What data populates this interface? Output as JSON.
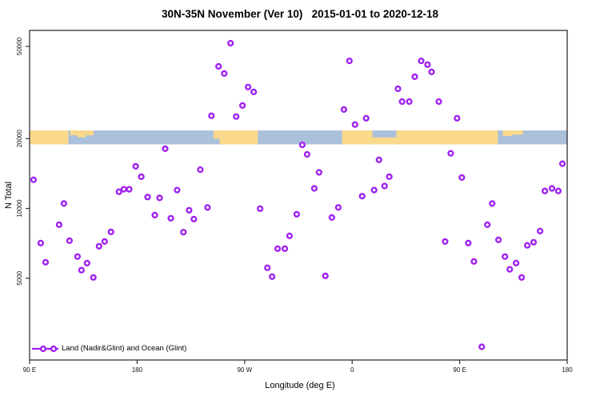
{
  "chart_data": {
    "type": "scatter",
    "title": "30N-35N November (Ver 10)   2015-01-01 to 2020-12-18",
    "xlabel": "Longitude (deg E)",
    "ylabel": "N Total",
    "y_scale": "log",
    "grid": "off",
    "legend_position": "bottom-left",
    "legend_label": "Land (Nadir&Glint) and Ocean (Glint)",
    "point_color": "#A020F0",
    "axis_color": "#333333",
    "xlim": [
      90,
      540
    ],
    "ylim": [
      2220,
      58600
    ],
    "x_ticks": [
      {
        "value": 90,
        "label": "90 E"
      },
      {
        "value": 180,
        "label": "180"
      },
      {
        "value": 270,
        "label": "90 W"
      },
      {
        "value": 360,
        "label": "0"
      },
      {
        "value": 450,
        "label": "90 E"
      },
      {
        "value": 540,
        "label": "180"
      }
    ],
    "y_ticks": [
      {
        "value": 5000,
        "label": "5000"
      },
      {
        "value": 10000,
        "label": "10000"
      },
      {
        "value": 20000,
        "label": "20000"
      },
      {
        "value": 50000,
        "label": "50000"
      }
    ],
    "points_format": [
      "longitude_axis_deg_east",
      "n_total"
    ],
    "points": [
      [
        203.5,
        18100
      ],
      [
        178.8,
        15200
      ],
      [
        183.5,
        13700
      ],
      [
        232.9,
        14700
      ],
      [
        93.3,
        13300
      ],
      [
        164.8,
        11800
      ],
      [
        168.8,
        12100
      ],
      [
        173.4,
        12100
      ],
      [
        188.8,
        11200
      ],
      [
        198.8,
        11100
      ],
      [
        213.5,
        12000
      ],
      [
        258.2,
        51600
      ],
      [
        248.2,
        41000
      ],
      [
        252.9,
        38200
      ],
      [
        272.9,
        33400
      ],
      [
        277.6,
        31800
      ],
      [
        268.2,
        27800
      ],
      [
        242.2,
        25100
      ],
      [
        262.9,
        24900
      ],
      [
        357.7,
        43300
      ],
      [
        353.1,
        26700
      ],
      [
        371.7,
        24500
      ],
      [
        362.4,
        23000
      ],
      [
        318.3,
        18800
      ],
      [
        322.3,
        17100
      ],
      [
        332.3,
        14300
      ],
      [
        382.4,
        16200
      ],
      [
        391.1,
        13700
      ],
      [
        328.3,
        12200
      ],
      [
        378.4,
        12000
      ],
      [
        387.1,
        12500
      ],
      [
        368.4,
        11300
      ],
      [
        417.8,
        43300
      ],
      [
        423.1,
        41700
      ],
      [
        426.5,
        38800
      ],
      [
        412.4,
        37000
      ],
      [
        398.4,
        32800
      ],
      [
        401.8,
        28900
      ],
      [
        407.8,
        28900
      ],
      [
        432.5,
        28900
      ],
      [
        447.8,
        24500
      ],
      [
        442.5,
        17300
      ],
      [
        451.8,
        13600
      ],
      [
        536.0,
        15600
      ],
      [
        521.3,
        11900
      ],
      [
        527.3,
        12200
      ],
      [
        532.6,
        11900
      ],
      [
        118.7,
        10500
      ],
      [
        194.8,
        9360
      ],
      [
        208.2,
        9070
      ],
      [
        223.5,
        9820
      ],
      [
        227.5,
        9000
      ],
      [
        238.9,
        10100
      ],
      [
        114.7,
        8510
      ],
      [
        218.8,
        7900
      ],
      [
        99.3,
        7090
      ],
      [
        123.4,
        7260
      ],
      [
        158.1,
        7920
      ],
      [
        148.1,
        6870
      ],
      [
        152.8,
        7200
      ],
      [
        103.4,
        5860
      ],
      [
        130.1,
        6200
      ],
      [
        138.1,
        5810
      ],
      [
        133.4,
        5420
      ],
      [
        143.4,
        5040
      ],
      [
        283.0,
        9980
      ],
      [
        313.6,
        9440
      ],
      [
        343.0,
        9140
      ],
      [
        348.4,
        10100
      ],
      [
        307.6,
        7620
      ],
      [
        297.6,
        6710
      ],
      [
        303.6,
        6710
      ],
      [
        289.0,
        5550
      ],
      [
        293.0,
        5080
      ],
      [
        337.6,
        5120
      ],
      [
        477.2,
        10500
      ],
      [
        473.2,
        8510
      ],
      [
        517.3,
        7990
      ],
      [
        437.8,
        7200
      ],
      [
        457.2,
        7090
      ],
      [
        482.5,
        7320
      ],
      [
        506.6,
        6930
      ],
      [
        511.9,
        7150
      ],
      [
        461.9,
        5910
      ],
      [
        487.9,
        6200
      ],
      [
        497.2,
        5810
      ],
      [
        491.9,
        5460
      ],
      [
        501.9,
        5040
      ],
      [
        468.5,
        2530
      ]
    ],
    "map_band": {
      "description": "30N-35N latitude world-map strip drawn across the N=20000 level",
      "top_n": 21700,
      "bottom_n": 18900,
      "ocean_color": "#ABC0DB",
      "land_color": "#FAD98B",
      "land_segments": [
        {
          "from": 90,
          "to": 122.5,
          "part": "full",
          "frac": 1.0
        },
        {
          "from": 124,
          "to": 130,
          "part": "top",
          "frac": 0.35
        },
        {
          "from": 130,
          "to": 137,
          "part": "top",
          "frac": 0.5
        },
        {
          "from": 137,
          "to": 143.5,
          "part": "top",
          "frac": 0.35
        },
        {
          "from": 244,
          "to": 249,
          "part": "top",
          "frac": 0.6
        },
        {
          "from": 249,
          "to": 281,
          "part": "full",
          "frac": 1.0
        },
        {
          "from": 351.5,
          "to": 377,
          "part": "full",
          "frac": 1.0
        },
        {
          "from": 377,
          "to": 397,
          "part": "bottom",
          "frac": 0.5
        },
        {
          "from": 397,
          "to": 482,
          "part": "full",
          "frac": 1.0
        },
        {
          "from": 486,
          "to": 494,
          "part": "top",
          "frac": 0.4
        },
        {
          "from": 494,
          "to": 503,
          "part": "top",
          "frac": 0.3
        }
      ]
    }
  }
}
